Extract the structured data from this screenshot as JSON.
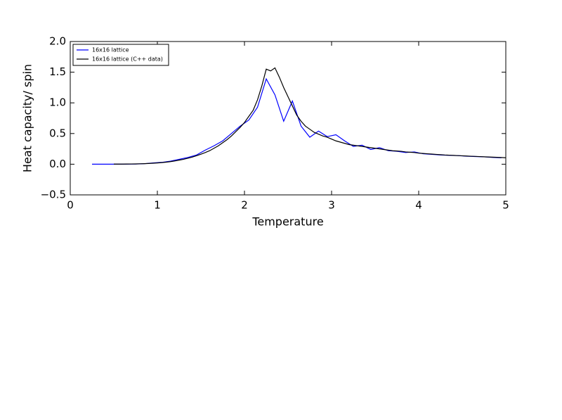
{
  "chart_data": {
    "type": "line",
    "xlabel": "Temperature",
    "ylabel": "Heat capacity/ spin",
    "xlim": [
      0,
      5
    ],
    "ylim": [
      -0.5,
      2.0
    ],
    "xticks": [
      0,
      1,
      2,
      3,
      4,
      5
    ],
    "yticks": [
      {
        "value": -0.5,
        "label": "−0.5"
      },
      {
        "value": 0,
        "label": "0.0"
      },
      0.5,
      {
        "value": 1,
        "label": "1.0"
      },
      1.5,
      {
        "value": 2,
        "label": "2.0"
      }
    ],
    "legend": "upper left",
    "series": [
      {
        "name": "16x16 lattice",
        "color": "#0000ff",
        "x": [
          0.25,
          0.35,
          0.45,
          0.55,
          0.65,
          0.75,
          0.85,
          0.95,
          1.05,
          1.15,
          1.25,
          1.35,
          1.45,
          1.55,
          1.65,
          1.75,
          1.85,
          1.95,
          2.05,
          2.15,
          2.25,
          2.35,
          2.45,
          2.55,
          2.65,
          2.75,
          2.85,
          2.95,
          3.05,
          3.15,
          3.25,
          3.35,
          3.45,
          3.55,
          3.65,
          3.75,
          3.85,
          3.95,
          4.05,
          4.15,
          4.25,
          4.35,
          4.45,
          4.55,
          4.65,
          4.75,
          4.85,
          4.95
        ],
        "values": [
          0,
          0,
          0,
          0,
          0.001,
          0.003,
          0.008,
          0.02,
          0.03,
          0.05,
          0.08,
          0.11,
          0.15,
          0.23,
          0.3,
          0.38,
          0.5,
          0.62,
          0.72,
          0.93,
          1.39,
          1.13,
          0.7,
          1.03,
          0.62,
          0.44,
          0.54,
          0.45,
          0.48,
          0.38,
          0.29,
          0.31,
          0.24,
          0.27,
          0.22,
          0.21,
          0.19,
          0.2,
          0.17,
          0.16,
          0.15,
          0.145,
          0.14,
          0.13,
          0.125,
          0.12,
          0.11,
          0.105
        ]
      },
      {
        "name": "16x16 lattice (C++ data)",
        "color": "#000000",
        "x": [
          0.5,
          0.55,
          0.6,
          0.65,
          0.7,
          0.75,
          0.8,
          0.85,
          0.9,
          0.95,
          1.0,
          1.05,
          1.1,
          1.15,
          1.2,
          1.25,
          1.3,
          1.35,
          1.4,
          1.45,
          1.5,
          1.55,
          1.6,
          1.65,
          1.7,
          1.75,
          1.8,
          1.85,
          1.9,
          1.95,
          2.0,
          2.05,
          2.1,
          2.15,
          2.2,
          2.25,
          2.3,
          2.35,
          2.4,
          2.45,
          2.5,
          2.55,
          2.6,
          2.65,
          2.7,
          2.75,
          2.8,
          2.85,
          2.9,
          2.95,
          3.0,
          3.05,
          3.1,
          3.15,
          3.2,
          3.25,
          3.3,
          3.35,
          3.4,
          3.45,
          3.5,
          3.55,
          3.6,
          3.65,
          3.7,
          3.75,
          3.8,
          3.85,
          3.9,
          3.95,
          4.0,
          4.05,
          4.1,
          4.15,
          4.2,
          4.25,
          4.3,
          4.35,
          4.4,
          4.45,
          4.5,
          4.55,
          4.6,
          4.65,
          4.7,
          4.75,
          4.8,
          4.85,
          4.9,
          4.95,
          5.0
        ],
        "values": [
          0.002,
          0.002,
          0.002,
          0.003,
          0.004,
          0.005,
          0.007,
          0.009,
          0.012,
          0.016,
          0.02,
          0.026,
          0.033,
          0.042,
          0.053,
          0.066,
          0.08,
          0.097,
          0.116,
          0.138,
          0.163,
          0.19,
          0.22,
          0.26,
          0.3,
          0.35,
          0.4,
          0.46,
          0.53,
          0.6,
          0.68,
          0.78,
          0.88,
          1.05,
          1.28,
          1.55,
          1.52,
          1.57,
          1.42,
          1.25,
          1.1,
          0.95,
          0.8,
          0.7,
          0.62,
          0.57,
          0.52,
          0.49,
          0.46,
          0.44,
          0.41,
          0.38,
          0.36,
          0.34,
          0.32,
          0.31,
          0.3,
          0.29,
          0.28,
          0.27,
          0.26,
          0.25,
          0.24,
          0.23,
          0.22,
          0.215,
          0.21,
          0.2,
          0.195,
          0.19,
          0.18,
          0.175,
          0.17,
          0.165,
          0.16,
          0.155,
          0.15,
          0.147,
          0.144,
          0.14,
          0.137,
          0.134,
          0.13,
          0.127,
          0.124,
          0.121,
          0.118,
          0.115,
          0.112,
          0.109,
          0.105
        ]
      }
    ]
  }
}
